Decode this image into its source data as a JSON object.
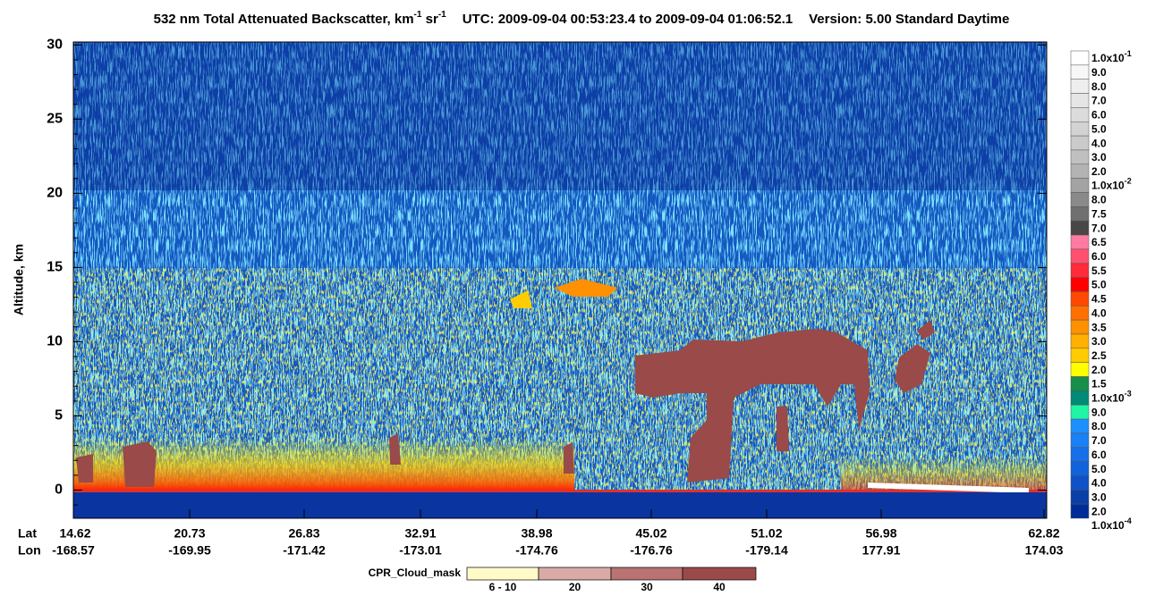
{
  "chart_data": {
    "type": "heatmap",
    "title": {
      "main": "532 nm Total Attenuated Backscatter, km",
      "sup1": "-1",
      "mid": " sr",
      "sup2": "-1",
      "utc": "UTC:  2009-09-04 00:53:23.4  to  2009-09-04 01:06:52.1",
      "version": "Version: 5.00  Standard  Daytime"
    },
    "y_label": "Altitude, km",
    "ylim": [
      -1.9,
      30.2
    ],
    "yticks": [
      0,
      5,
      10,
      15,
      20,
      25,
      30
    ],
    "x_axis": {
      "lat_label": "Lat",
      "lon_label": "Lon",
      "lat": [
        14.62,
        20.73,
        26.83,
        32.91,
        38.98,
        45.02,
        51.02,
        56.98,
        62.82
      ],
      "lon": [
        -168.57,
        -169.95,
        -171.42,
        -173.01,
        -174.76,
        -176.76,
        -179.14,
        177.91,
        174.03
      ]
    },
    "colorbar": {
      "labels": [
        {
          "label": "1.0x10",
          "sup": "-1"
        },
        "9.0",
        "8.0",
        "7.0",
        "6.0",
        "5.0",
        "4.0",
        "3.0",
        "2.0",
        {
          "label": "1.0x10",
          "sup": "-2"
        },
        "8.0",
        "7.5",
        "7.0",
        "6.5",
        "6.0",
        "5.5",
        "5.0",
        "4.5",
        "4.0",
        "3.5",
        "3.0",
        "2.5",
        "2.0",
        "1.5",
        {
          "label": "1.0x10",
          "sup": "-3"
        },
        "9.0",
        "8.0",
        "7.0",
        "6.0",
        "5.0",
        "4.0",
        "3.0",
        "2.0",
        {
          "label": "1.0x10",
          "sup": "-4"
        }
      ],
      "colors": [
        "#ffffff",
        "#f7f7f7",
        "#eeeeee",
        "#e5e5e5",
        "#dcdcdc",
        "#d3d3d3",
        "#cacaca",
        "#c0c0c0",
        "#b3b3b3",
        "#a3a3a3",
        "#8a8a8a",
        "#707070",
        "#474747",
        "#ff7aa0",
        "#ff5070",
        "#ff2a3a",
        "#ff0000",
        "#ff4800",
        "#ff7000",
        "#ff9000",
        "#ffb000",
        "#ffcc00",
        "#ffff00",
        "#178f4a",
        "#008a78",
        "#20f5a5",
        "#1e8fff",
        "#1a80f5",
        "#1670e8",
        "#1262dc",
        "#0e52c8",
        "#0a3fa8",
        "#002c9a"
      ]
    },
    "cpr_legend": {
      "title": "CPR_Cloud_mask",
      "labels": [
        "6 - 10",
        "20",
        "30",
        "40"
      ],
      "colors": [
        "#fffac8",
        "#d9aaa6",
        "#b87372",
        "#9a4a48"
      ]
    }
  }
}
